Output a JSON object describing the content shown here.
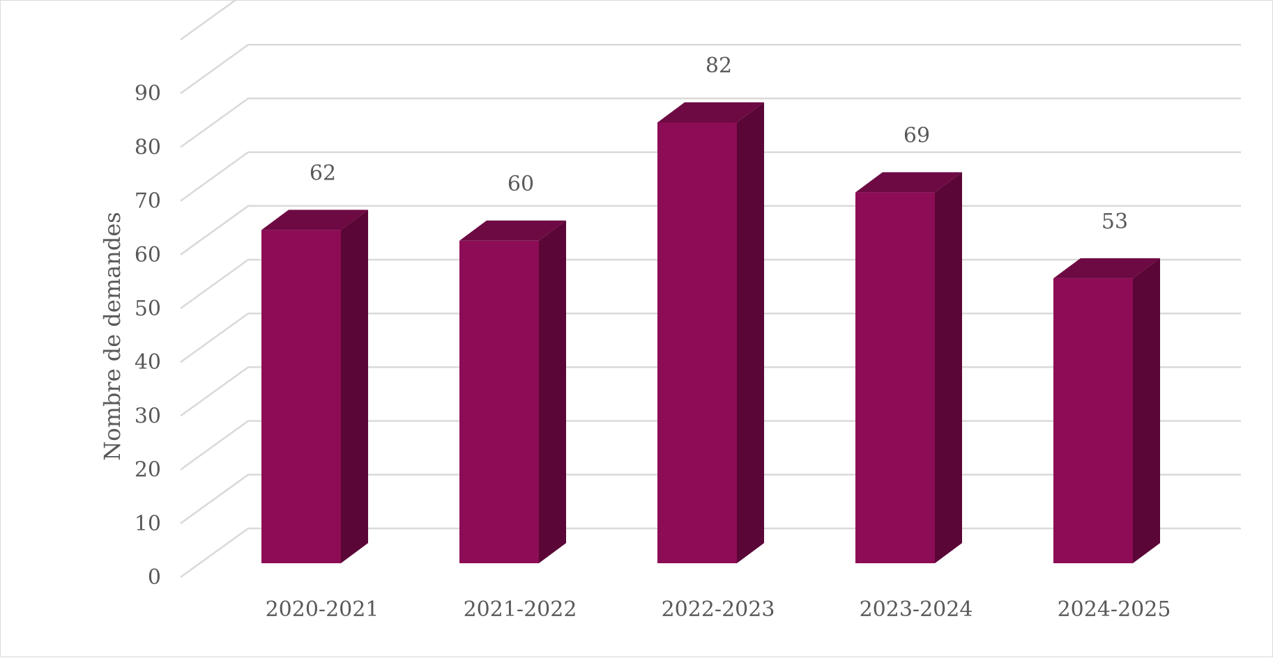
{
  "chart_data": {
    "type": "bar",
    "style": "3d-column",
    "categories": [
      "2020-2021",
      "2021-2022",
      "2022-2023",
      "2023-2024",
      "2024-2025"
    ],
    "values": [
      62,
      60,
      82,
      69,
      53
    ],
    "ylabel": "Nombre de demandes",
    "yticks": [
      0,
      10,
      20,
      30,
      40,
      50,
      60,
      70,
      80,
      90
    ],
    "ylim": [
      0,
      100
    ],
    "grid": true,
    "legend": "none",
    "colors": {
      "front": "#8c0d55",
      "top": "#6e0a43",
      "side": "#5a0637",
      "grid": "#d9d9d9",
      "text": "#595959"
    }
  }
}
